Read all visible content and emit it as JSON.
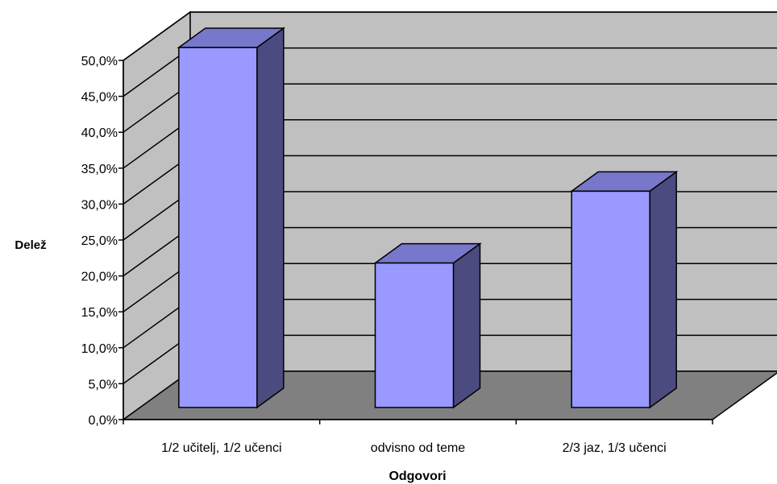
{
  "chart_data": {
    "type": "bar",
    "three_d": true,
    "title": "",
    "xlabel": "Odgovori",
    "ylabel": "Delež",
    "categories": [
      "1/2 učitelj, 1/2 učenci",
      "odvisno od teme",
      "2/3 jaz, 1/3 učenci"
    ],
    "values": [
      50.0,
      20.0,
      30.0
    ],
    "ylim": [
      0,
      50
    ],
    "ytick_step": 5,
    "ytick_labels": [
      "0,0%",
      "5,0%",
      "10,0%",
      "15,0%",
      "20,0%",
      "25,0%",
      "30,0%",
      "35,0%",
      "40,0%",
      "45,0%",
      "50,0%"
    ],
    "grid": true,
    "legend": "none",
    "colors": {
      "bar_front": "#9999ff",
      "bar_top": "#7777cc",
      "bar_side": "#4b4b80",
      "back_wall": "#c0c0c0",
      "side_wall": "#c0c0c0",
      "floor": "#808080"
    }
  }
}
